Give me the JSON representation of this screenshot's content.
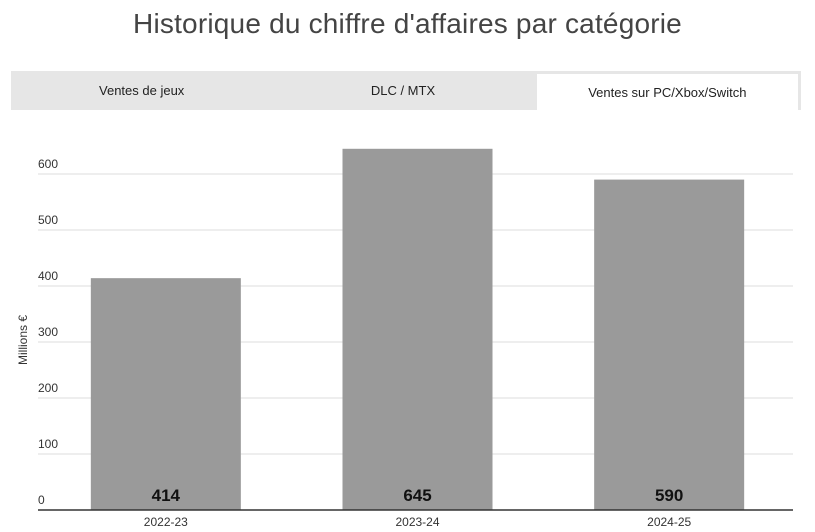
{
  "title": "Historique du chiffre d'affaires par catégorie",
  "tabs": [
    {
      "label": "Ventes de jeux",
      "active": false
    },
    {
      "label": "DLC / MTX",
      "active": false
    },
    {
      "label": "Ventes sur PC/Xbox/Switch",
      "active": true
    }
  ],
  "colors": {
    "bar": "#9a9a9a",
    "grid": "#dcdcdc",
    "axis": "#333333"
  },
  "chart_data": {
    "type": "bar",
    "categories": [
      "2022-23",
      "2023-24",
      "2024-25"
    ],
    "values": [
      414,
      645,
      590
    ],
    "data_labels": [
      "414",
      "645",
      "590"
    ],
    "title": "Historique du chiffre d'affaires par catégorie",
    "xlabel": "",
    "ylabel": "Millions €",
    "ylim": [
      0,
      680
    ],
    "yticks": [
      0,
      100,
      200,
      300,
      400,
      500,
      600
    ],
    "grid": true,
    "legend": "none"
  }
}
